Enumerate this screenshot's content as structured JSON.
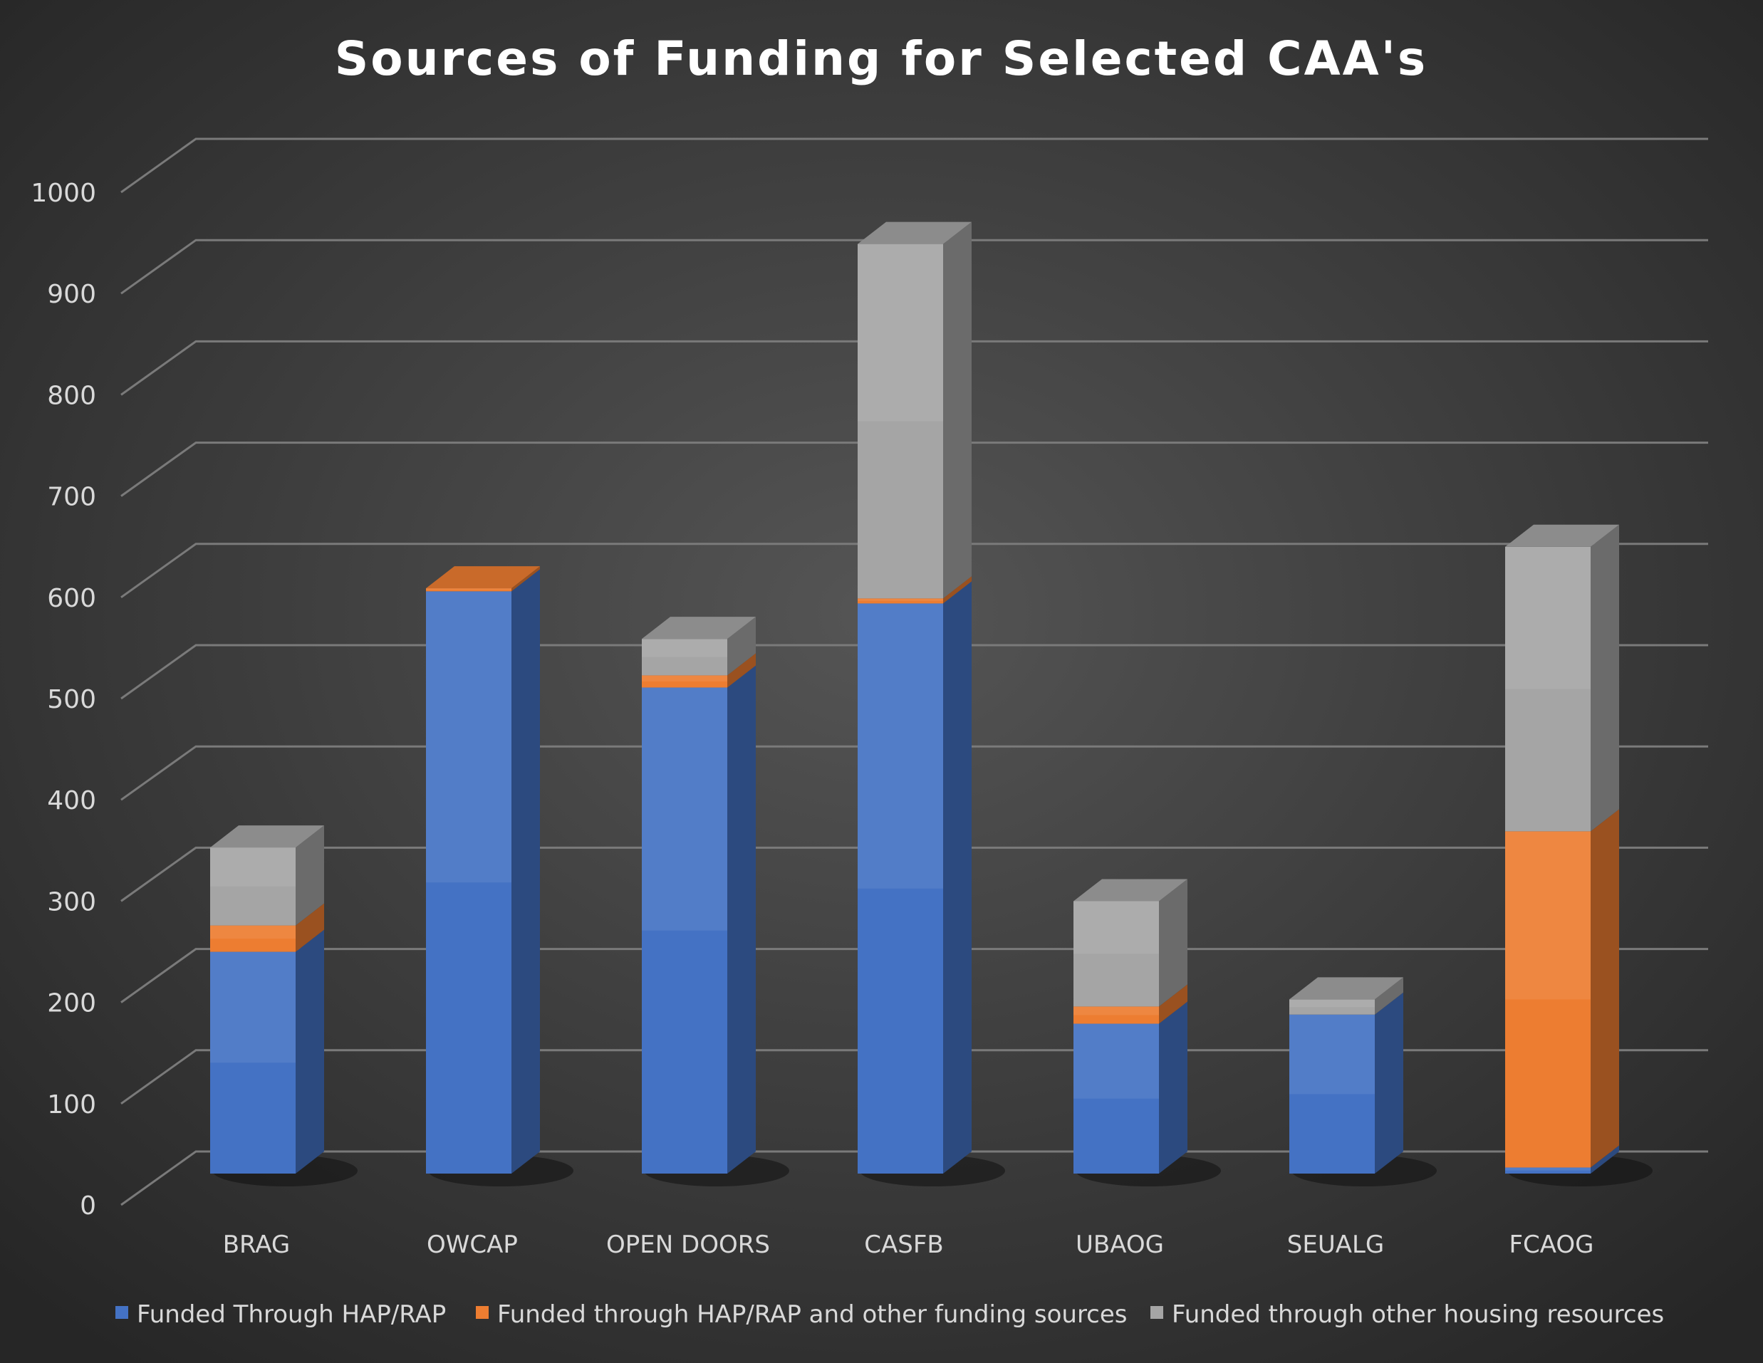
{
  "chart_data": {
    "type": "bar",
    "stacked": true,
    "title": "Sources of Funding for Selected CAA's",
    "xlabel": "",
    "ylabel": "",
    "ylim": [
      0,
      1000
    ],
    "yticks": [
      "0",
      "100",
      "200",
      "300",
      "400",
      "500",
      "600",
      "700",
      "800",
      "900",
      "1000"
    ],
    "grid": true,
    "legend_position": "bottom",
    "categories": [
      "BRAG",
      "OWCAP",
      "OPEN DOORS",
      "CASFB",
      "UBAOG",
      "SEUALG",
      "FCAOG"
    ],
    "series": [
      {
        "name": "Funded Through HAP/RAP",
        "color": "#4472C4",
        "values": [
          219,
          575,
          480,
          563,
          148,
          157,
          6
        ]
      },
      {
        "name": "Funded through HAP/RAP and other funding sources",
        "color": "#ED7D31",
        "values": [
          26,
          3,
          12,
          5,
          17,
          0,
          332
        ]
      },
      {
        "name": "Funded through other housing resources",
        "color": "#A5A5A5",
        "values": [
          77,
          0,
          36,
          350,
          104,
          15,
          281
        ]
      }
    ]
  }
}
